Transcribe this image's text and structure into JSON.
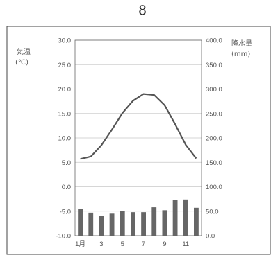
{
  "page_number": "8",
  "chart_data": {
    "type": "bar+line",
    "left_axis": {
      "label_line1": "気温",
      "label_line2": "(℃)",
      "ticks": [
        "30.0",
        "25.0",
        "20.0",
        "15.0",
        "10.0",
        "5.0",
        "0.0",
        "-5.0",
        "-10.0"
      ],
      "ylim": [
        -10,
        30
      ]
    },
    "right_axis": {
      "label_line1": "降水量",
      "label_line2": "(mm)",
      "ticks": [
        "400.0",
        "350.0",
        "300.0",
        "250.0",
        "200.0",
        "150.0",
        "100.0",
        "50.0",
        "0.0"
      ],
      "ylim": [
        0,
        400
      ]
    },
    "x_ticks": [
      "1月",
      "3",
      "5",
      "7",
      "9",
      "11"
    ],
    "months": [
      1,
      2,
      3,
      4,
      5,
      6,
      7,
      8,
      9,
      10,
      11,
      12
    ],
    "temperature": [
      5.7,
      6.2,
      8.5,
      11.7,
      15.1,
      17.6,
      19.0,
      18.8,
      16.7,
      12.8,
      8.6,
      5.8
    ],
    "precipitation": [
      55,
      47,
      40,
      45,
      50,
      48,
      48,
      58,
      52,
      73,
      74,
      57
    ],
    "grid": true,
    "colors": {
      "line": "#555555",
      "bar": "#666666",
      "grid": "#c8c8c8",
      "frame": "#444444"
    }
  }
}
